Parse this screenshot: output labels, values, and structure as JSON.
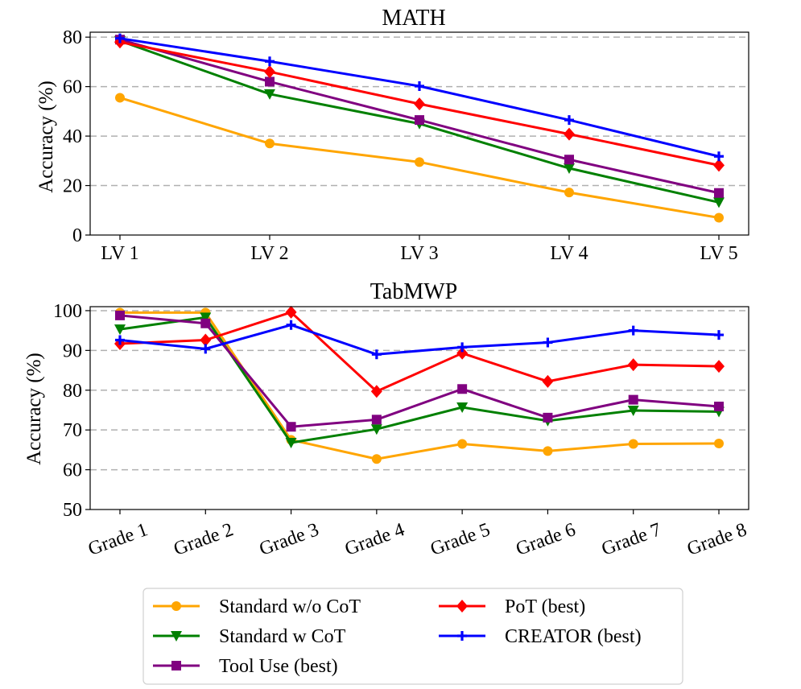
{
  "chart_data": [
    {
      "type": "line",
      "title": "MATH",
      "xlabel": "",
      "ylabel": "Accuracy (%)",
      "categories": [
        "LV 1",
        "LV 2",
        "LV 3",
        "LV 4",
        "LV 5"
      ],
      "ylim": [
        0,
        82
      ],
      "yticks": [
        0,
        20,
        40,
        60,
        80
      ],
      "grid": true,
      "series": [
        {
          "name": "Standard w/o CoT",
          "color": "#FFA500",
          "marker": "circle",
          "values": [
            55.5,
            37,
            29.5,
            17.2,
            7
          ]
        },
        {
          "name": "Standard w CoT",
          "color": "#008000",
          "marker": "triangle-down",
          "values": [
            78.5,
            57,
            45,
            27,
            13.2
          ]
        },
        {
          "name": "Tool Use (best)",
          "color": "#800080",
          "marker": "square",
          "values": [
            79,
            62,
            46.5,
            30.5,
            17
          ]
        },
        {
          "name": "PoT (best)",
          "color": "#FF0000",
          "marker": "diamond",
          "values": [
            78,
            66,
            53,
            40.8,
            28.2
          ]
        },
        {
          "name": "CREATOR (best)",
          "color": "#0000FF",
          "marker": "plus",
          "values": [
            79.5,
            70.2,
            60.2,
            46.5,
            31.8
          ]
        }
      ]
    },
    {
      "type": "line",
      "title": "TabMWP",
      "xlabel": "",
      "ylabel": "Accuracy (%)",
      "categories": [
        "Grade 1",
        "Grade 2",
        "Grade 3",
        "Grade 4",
        "Grade 5",
        "Grade 6",
        "Grade 7",
        "Grade 8"
      ],
      "ylim": [
        50,
        101
      ],
      "yticks": [
        50,
        60,
        70,
        80,
        90,
        100
      ],
      "grid": true,
      "series": [
        {
          "name": "Standard w/o CoT",
          "color": "#FFA500",
          "marker": "circle",
          "values": [
            99.5,
            99.5,
            67.5,
            62.7,
            66.5,
            64.7,
            66.5,
            66.6
          ]
        },
        {
          "name": "Standard w CoT",
          "color": "#008000",
          "marker": "triangle-down",
          "values": [
            95.3,
            98.3,
            66.8,
            70.2,
            75.7,
            72.3,
            74.9,
            74.6
          ]
        },
        {
          "name": "Tool Use (best)",
          "color": "#800080",
          "marker": "square",
          "values": [
            98.8,
            96.8,
            70.8,
            72.6,
            80.3,
            73.1,
            77.6,
            75.9
          ]
        },
        {
          "name": "PoT (best)",
          "color": "#FF0000",
          "marker": "diamond",
          "values": [
            91.7,
            92.6,
            99.6,
            79.7,
            89.3,
            82.2,
            86.4,
            86
          ]
        },
        {
          "name": "CREATOR (best)",
          "color": "#0000FF",
          "marker": "plus",
          "values": [
            92.6,
            90.4,
            96.4,
            89,
            90.8,
            92,
            95,
            93.9
          ]
        }
      ]
    }
  ],
  "legend": {
    "placement": "bottom-center",
    "entries": [
      {
        "label": "Standard w/o CoT",
        "color": "#FFA500",
        "marker": "circle"
      },
      {
        "label": "PoT (best)",
        "color": "#FF0000",
        "marker": "diamond"
      },
      {
        "label": "Standard w CoT",
        "color": "#008000",
        "marker": "triangle-down"
      },
      {
        "label": "CREATOR (best)",
        "color": "#0000FF",
        "marker": "plus"
      },
      {
        "label": "Tool Use (best)",
        "color": "#800080",
        "marker": "square"
      }
    ]
  }
}
